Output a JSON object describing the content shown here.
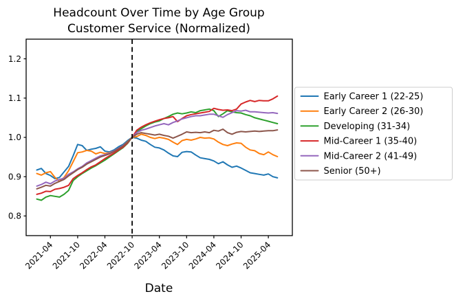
{
  "figure": {
    "title_line1": "Headcount Over Time by Age Group",
    "title_line2": "Customer Service (Normalized)",
    "xlabel": "Date"
  },
  "chart_data": {
    "type": "line",
    "title": "Headcount Over Time by Age Group",
    "subtitle": "Customer Service (Normalized)",
    "xlabel": "Date",
    "ylabel": "",
    "grid": false,
    "legend_position": "right-outside",
    "ylim": [
      0.75,
      1.25
    ],
    "yticks": [
      "0.8",
      "0.9",
      "1.0",
      "1.1",
      "1.2"
    ],
    "xticks": [
      "2021-04",
      "2021-10",
      "2022-04",
      "2022-10",
      "2023-04",
      "2023-10",
      "2024-04",
      "2024-10",
      "2025-04"
    ],
    "vline": {
      "x": "2022-10",
      "style": "dashed",
      "color": "#000000"
    },
    "x": [
      "2021-01",
      "2021-02",
      "2021-03",
      "2021-04",
      "2021-05",
      "2021-06",
      "2021-07",
      "2021-08",
      "2021-09",
      "2021-10",
      "2021-11",
      "2021-12",
      "2022-01",
      "2022-02",
      "2022-03",
      "2022-04",
      "2022-05",
      "2022-06",
      "2022-07",
      "2022-08",
      "2022-09",
      "2022-10",
      "2022-11",
      "2022-12",
      "2023-01",
      "2023-02",
      "2023-03",
      "2023-04",
      "2023-05",
      "2023-06",
      "2023-07",
      "2023-08",
      "2023-09",
      "2023-10",
      "2023-11",
      "2023-12",
      "2024-01",
      "2024-02",
      "2024-03",
      "2024-04",
      "2024-05",
      "2024-06",
      "2024-07",
      "2024-08",
      "2024-09",
      "2024-10",
      "2024-11",
      "2024-12",
      "2025-01",
      "2025-02",
      "2025-03",
      "2025-04",
      "2025-05",
      "2025-06"
    ],
    "series": [
      {
        "name": "Early Career 1 (22-25)",
        "color": "#1f77b4",
        "values": [
          0.917,
          0.921,
          0.908,
          0.903,
          0.895,
          0.898,
          0.912,
          0.926,
          0.953,
          0.982,
          0.979,
          0.967,
          0.97,
          0.972,
          0.976,
          0.965,
          0.963,
          0.968,
          0.976,
          0.982,
          0.992,
          1.0,
          0.998,
          0.993,
          0.99,
          0.982,
          0.975,
          0.973,
          0.968,
          0.96,
          0.953,
          0.951,
          0.962,
          0.964,
          0.963,
          0.955,
          0.948,
          0.946,
          0.944,
          0.94,
          0.933,
          0.938,
          0.93,
          0.924,
          0.927,
          0.922,
          0.916,
          0.91,
          0.908,
          0.906,
          0.904,
          0.907,
          0.9,
          0.897
        ]
      },
      {
        "name": "Early Career 2 (26-30)",
        "color": "#ff7f0e",
        "values": [
          0.908,
          0.904,
          0.91,
          0.913,
          0.898,
          0.888,
          0.898,
          0.915,
          0.938,
          0.961,
          0.963,
          0.967,
          0.965,
          0.958,
          0.962,
          0.959,
          0.961,
          0.965,
          0.972,
          0.979,
          0.989,
          1.0,
          1.002,
          1.008,
          1.005,
          1.0,
          0.997,
          1.0,
          0.998,
          0.995,
          0.988,
          0.982,
          0.992,
          0.995,
          0.993,
          0.996,
          1.0,
          0.998,
          0.999,
          0.996,
          0.988,
          0.982,
          0.979,
          0.983,
          0.986,
          0.985,
          0.975,
          0.968,
          0.966,
          0.959,
          0.956,
          0.963,
          0.956,
          0.951
        ]
      },
      {
        "name": "Developing (31-34)",
        "color": "#2ca02c",
        "values": [
          0.843,
          0.84,
          0.848,
          0.852,
          0.85,
          0.848,
          0.855,
          0.865,
          0.89,
          0.9,
          0.908,
          0.915,
          0.922,
          0.928,
          0.935,
          0.942,
          0.95,
          0.958,
          0.966,
          0.974,
          0.985,
          1.0,
          1.015,
          1.022,
          1.029,
          1.035,
          1.039,
          1.042,
          1.048,
          1.053,
          1.059,
          1.062,
          1.06,
          1.062,
          1.065,
          1.063,
          1.068,
          1.07,
          1.072,
          1.068,
          1.053,
          1.06,
          1.068,
          1.065,
          1.063,
          1.062,
          1.058,
          1.055,
          1.05,
          1.047,
          1.044,
          1.041,
          1.038,
          1.035
        ]
      },
      {
        "name": "Mid-Career 1 (35-40)",
        "color": "#d62728",
        "values": [
          0.855,
          0.858,
          0.863,
          0.862,
          0.868,
          0.87,
          0.873,
          0.878,
          0.895,
          0.903,
          0.91,
          0.918,
          0.925,
          0.93,
          0.938,
          0.946,
          0.953,
          0.96,
          0.968,
          0.975,
          0.986,
          1.0,
          1.018,
          1.026,
          1.032,
          1.037,
          1.041,
          1.045,
          1.048,
          1.05,
          1.053,
          1.04,
          1.048,
          1.055,
          1.058,
          1.06,
          1.062,
          1.064,
          1.066,
          1.074,
          1.071,
          1.069,
          1.07,
          1.068,
          1.072,
          1.085,
          1.09,
          1.094,
          1.091,
          1.094,
          1.093,
          1.093,
          1.098,
          1.105
        ]
      },
      {
        "name": "Mid-Career 2 (41-49)",
        "color": "#9467bd",
        "values": [
          0.876,
          0.88,
          0.886,
          0.882,
          0.889,
          0.893,
          0.896,
          0.906,
          0.912,
          0.92,
          0.926,
          0.935,
          0.941,
          0.947,
          0.953,
          0.956,
          0.96,
          0.965,
          0.972,
          0.979,
          0.988,
          1.0,
          1.012,
          1.018,
          1.021,
          1.025,
          1.029,
          1.032,
          1.035,
          1.032,
          1.038,
          1.042,
          1.047,
          1.05,
          1.053,
          1.055,
          1.055,
          1.057,
          1.059,
          1.059,
          1.055,
          1.051,
          1.058,
          1.063,
          1.068,
          1.067,
          1.069,
          1.065,
          1.065,
          1.064,
          1.063,
          1.062,
          1.063,
          1.061
        ]
      },
      {
        "name": "Senior (50+)",
        "color": "#8c564b",
        "values": [
          0.869,
          0.873,
          0.878,
          0.876,
          0.883,
          0.888,
          0.893,
          0.902,
          0.91,
          0.918,
          0.924,
          0.932,
          0.938,
          0.944,
          0.95,
          0.954,
          0.958,
          0.964,
          0.971,
          0.978,
          0.988,
          1.0,
          1.008,
          1.012,
          1.01,
          1.008,
          1.006,
          1.008,
          1.005,
          1.003,
          0.998,
          1.003,
          1.008,
          1.014,
          1.012,
          1.013,
          1.012,
          1.014,
          1.012,
          1.018,
          1.016,
          1.021,
          1.012,
          1.008,
          1.013,
          1.015,
          1.014,
          1.015,
          1.016,
          1.015,
          1.016,
          1.017,
          1.017,
          1.019
        ]
      }
    ]
  }
}
